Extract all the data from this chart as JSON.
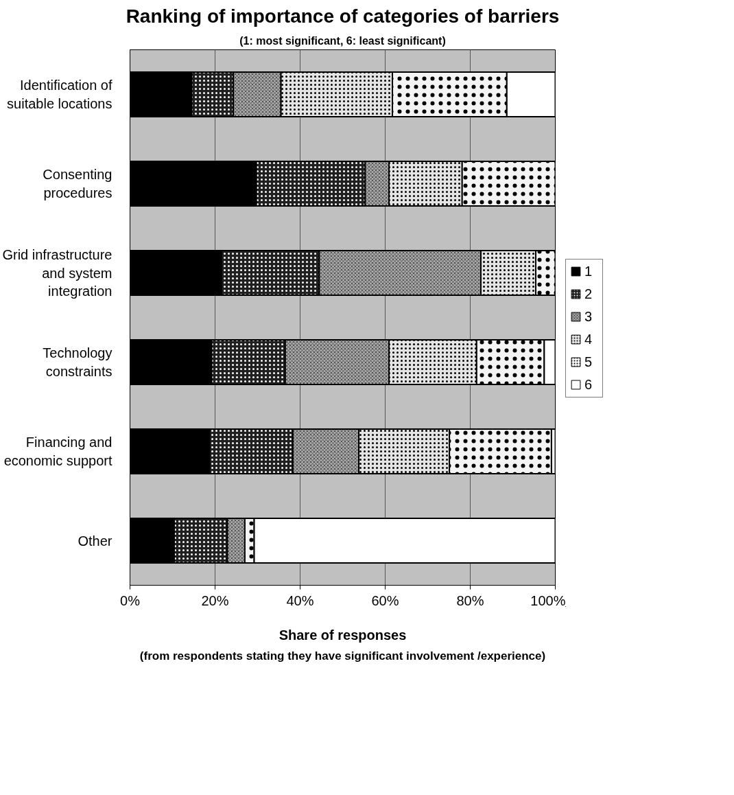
{
  "chart_data": {
    "type": "bar",
    "orientation": "horizontal",
    "stacked": true,
    "title": "Ranking of importance of categories of barriers",
    "subtitle": "(1: most significant, 6: least significant)",
    "xlabel": "Share of responses",
    "annotations": [
      "(from respondents stating they have significant involvement /experience)"
    ],
    "categories": [
      "Identification of suitable locations",
      "Consenting procedures",
      "Grid infrastructure and system integration",
      "Technology constraints",
      "Financing and economic support",
      "Other"
    ],
    "series": [
      {
        "name": "1",
        "color": "#000000",
        "values": [
          14.5,
          29.7,
          21.5,
          19.2,
          18.7,
          10.4
        ]
      },
      {
        "name": "2",
        "color": "#202020",
        "values": [
          9.8,
          25.6,
          23.0,
          17.3,
          19.6,
          12.5
        ]
      },
      {
        "name": "3",
        "color": "#a8a8a8",
        "values": [
          11.2,
          5.6,
          38.0,
          24.4,
          15.5,
          4.1
        ]
      },
      {
        "name": "4",
        "color": "#e4e4e4",
        "values": [
          26.2,
          17.2,
          12.9,
          20.6,
          21.3,
          0
        ]
      },
      {
        "name": "5",
        "color": "#f4f4f4",
        "values": [
          26.9,
          21.9,
          4.6,
          15.9,
          24.0,
          2.2
        ]
      },
      {
        "name": "6",
        "color": "#ffffff",
        "values": [
          11.4,
          0,
          0,
          2.6,
          0.9,
          70.8
        ]
      }
    ],
    "xlim": [
      0,
      100
    ],
    "xticks": [
      {
        "value": 0,
        "label": "0%"
      },
      {
        "value": 20,
        "label": "20%"
      },
      {
        "value": 40,
        "label": "40%"
      },
      {
        "value": 60,
        "label": "60%"
      },
      {
        "value": 80,
        "label": "80%"
      },
      {
        "value": 100,
        "label": "100%"
      }
    ],
    "grid": "x",
    "legend": "right"
  }
}
